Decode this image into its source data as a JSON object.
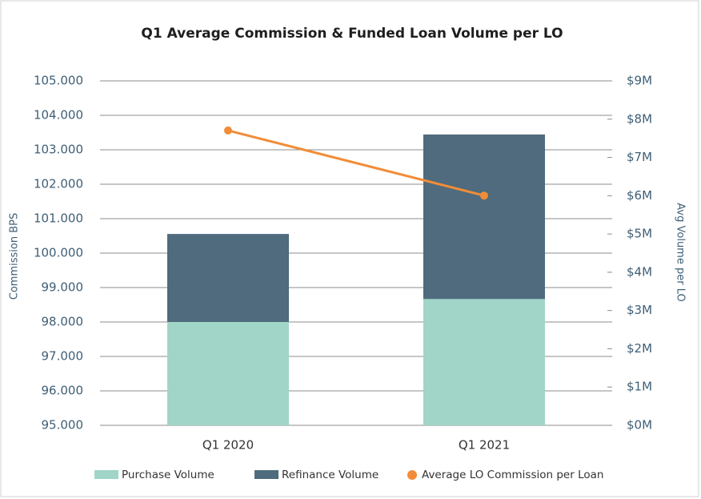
{
  "chart_data": {
    "type": "combo",
    "title": "Q1 Average Commission & Funded Loan Volume per LO",
    "y_axis_label": "Commission BPS",
    "y2_axis_label": "Avg Volume per LO",
    "categories": [
      "Q1 2020",
      "Q1 2021"
    ],
    "series": [
      {
        "name": "Purchase Volume",
        "color": "#a0d5c8",
        "type": "bar",
        "axis": "y2",
        "values": [
          2.7,
          3.3
        ]
      },
      {
        "name": "Refinance Volume",
        "color": "#4f6b7d",
        "type": "bar",
        "axis": "y2",
        "values": [
          2.3,
          4.3
        ]
      },
      {
        "name": "Average LO Commission per Loan",
        "color": "#f28c38",
        "type": "line",
        "axis": "y",
        "values": [
          103.56,
          101.67
        ]
      }
    ],
    "ylim": [
      95,
      105
    ],
    "yticks": [
      {
        "value": 95,
        "label": "95.000"
      },
      {
        "value": 96,
        "label": "96.000"
      },
      {
        "value": 97,
        "label": "97.000"
      },
      {
        "value": 98,
        "label": "98.000"
      },
      {
        "value": 99,
        "label": "99.000"
      },
      {
        "value": 100,
        "label": "100.000"
      },
      {
        "value": 101,
        "label": "101.000"
      },
      {
        "value": 102,
        "label": "102.000"
      },
      {
        "value": 103,
        "label": "103.000"
      },
      {
        "value": 104,
        "label": "104.000"
      },
      {
        "value": 105,
        "label": "105.000"
      }
    ],
    "y2lim": [
      0,
      9
    ],
    "y2ticks": [
      {
        "value": 0,
        "label": "$0M"
      },
      {
        "value": 1,
        "label": "$1M"
      },
      {
        "value": 2,
        "label": "$2M"
      },
      {
        "value": 3,
        "label": "$3M"
      },
      {
        "value": 4,
        "label": "$4M"
      },
      {
        "value": 5,
        "label": "$5M"
      },
      {
        "value": 6,
        "label": "$6M"
      },
      {
        "value": 7,
        "label": "$7M"
      },
      {
        "value": 8,
        "label": "$8M"
      },
      {
        "value": 9,
        "label": "$9M"
      }
    ],
    "grid": true,
    "legend": "bottom"
  }
}
